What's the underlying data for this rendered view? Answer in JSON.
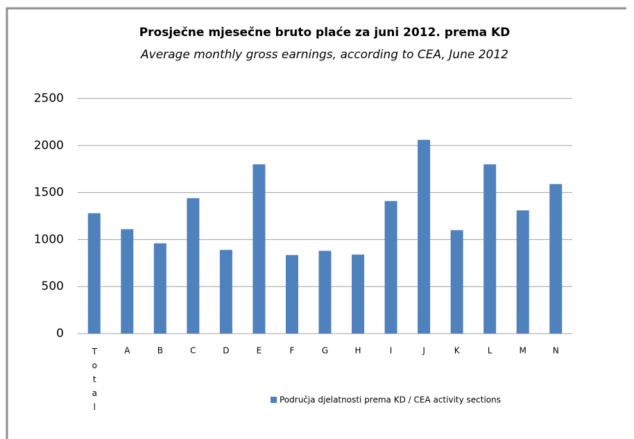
{
  "chart_data": {
    "type": "bar",
    "title": "Prosječne mjesečne bruto plaće za juni 2012. prema KD",
    "subtitle": "Average monthly gross earnings, according to CEA, June 2012",
    "categories": [
      "Total",
      "A",
      "B",
      "C",
      "D",
      "E",
      "F",
      "G",
      "H",
      "I",
      "J",
      "K",
      "L",
      "M",
      "N"
    ],
    "series": [
      {
        "name": "Područja djelatnosti prema KD / CEA activity sections",
        "color": "#4f81bd",
        "values": [
          1280,
          1110,
          960,
          1440,
          890,
          1800,
          835,
          880,
          840,
          1410,
          2060,
          1100,
          1800,
          1310,
          1590
        ]
      }
    ],
    "ylim": [
      0,
      2500
    ],
    "yticks": [
      0,
      500,
      1000,
      1500,
      2000,
      2500
    ],
    "grid": true,
    "legend": "bottom"
  }
}
